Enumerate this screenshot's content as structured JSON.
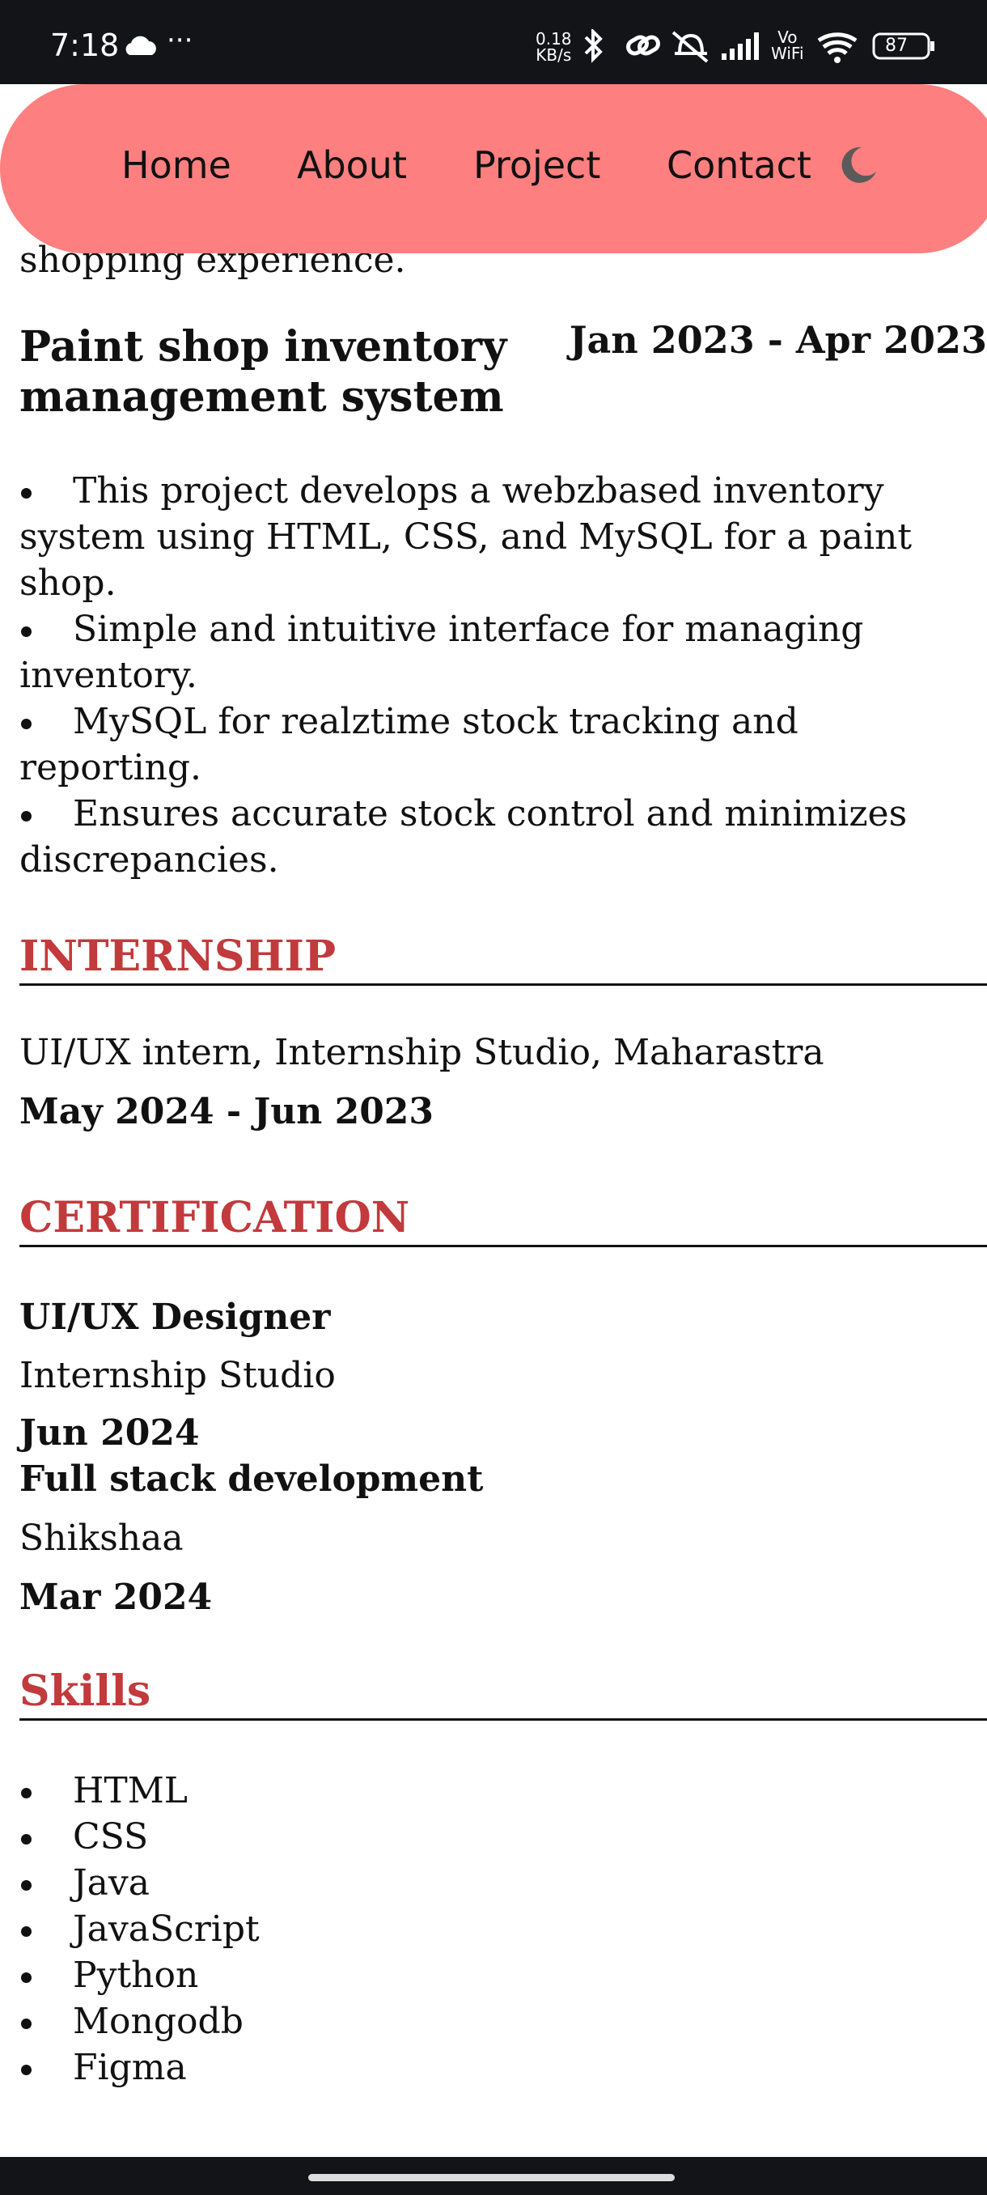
{
  "status_bar": {
    "time": "7:18",
    "more": "···",
    "net_speed": "0.18",
    "net_unit": "KB/s",
    "volte": "Vo",
    "wifi_label": "WiFi",
    "battery": "87"
  },
  "nav": {
    "items": [
      "Home",
      "About",
      "Project",
      "Contact"
    ]
  },
  "project": {
    "prev_text": "shopping experience.",
    "title": "Paint shop inventory management system",
    "dates": "Jan 2023 - Apr 2023",
    "bullets": [
      "This project develops a webzbased inventory system using HTML, CSS, and MySQL for a paint shop.",
      "Simple and intuitive interface for managing inventory.",
      "MySQL for realztime stock tracking and reporting.",
      "Ensures accurate stock control and minimizes discrepancies."
    ]
  },
  "internship": {
    "heading": "INTERNSHIP",
    "role": "UI/UX intern, Internship Studio, Maharastra",
    "dates": "May 2024 - Jun 2023"
  },
  "certification": {
    "heading": "CERTIFICATION",
    "items": [
      {
        "title": "UI/UX Designer",
        "issuer": "Internship Studio",
        "date": "Jun 2024"
      },
      {
        "title": "Full stack development",
        "issuer": "Shikshaa",
        "date": "Mar 2024"
      }
    ]
  },
  "skills": {
    "heading": "Skills",
    "items": [
      "HTML",
      "CSS",
      "Java",
      "JavaScript",
      "Python",
      "Mongodb",
      "Figma"
    ]
  }
}
